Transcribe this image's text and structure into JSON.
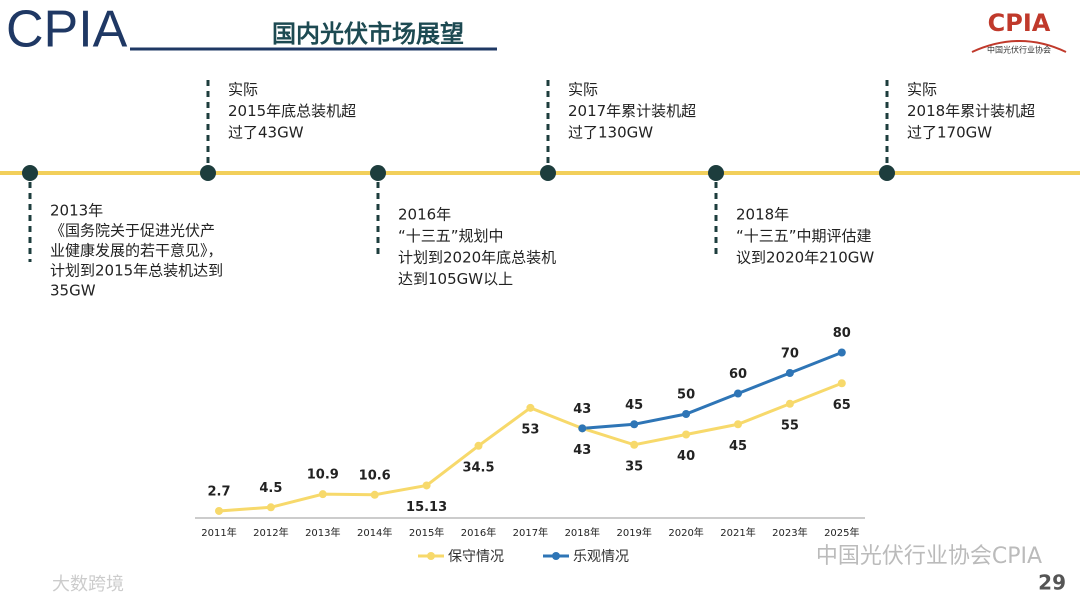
{
  "header": {
    "brand": "CPIA",
    "title": "国内光伏市场展望",
    "logo": "CPIA",
    "logo_sub": "中国光伏行业协会"
  },
  "timeline": [
    {
      "lines": [
        "2013年",
        "《国务院关于促进光伏产",
        "业健康发展的若干意见》，",
        "计划到2015年总装机达到",
        "35GW"
      ]
    },
    {
      "lines": [
        "实际",
        "2015年底总装机超",
        "过了43GW"
      ]
    },
    {
      "lines": [
        "2016年",
        "“十三五”规划中",
        "计划到2020年底总装机",
        "达到105GW以上"
      ]
    },
    {
      "lines": [
        "实际",
        "2017年累计装机超",
        "过了130GW"
      ]
    },
    {
      "lines": [
        "2018年",
        "“十三五”中期评估建",
        "议到2020年210GW"
      ]
    },
    {
      "lines": [
        "实际",
        "2018年累计装机超",
        "过了170GW"
      ]
    }
  ],
  "chart_data": {
    "type": "line",
    "categories": [
      "2011年",
      "2012年",
      "2013年",
      "2014年",
      "2015年",
      "2016年",
      "2017年",
      "2018年",
      "2019年",
      "2020年",
      "2021年",
      "2023年",
      "2025年"
    ],
    "series": [
      {
        "name": "保守情况",
        "color": "#f7d96b",
        "values": [
          2.7,
          4.5,
          10.9,
          10.6,
          15.13,
          34.5,
          53,
          43,
          35,
          40,
          45,
          55,
          65
        ]
      },
      {
        "name": "乐观情况",
        "color": "#2e75b6",
        "values": [
          null,
          null,
          null,
          null,
          null,
          null,
          null,
          43,
          45,
          50,
          60,
          70,
          80
        ]
      }
    ],
    "ylim": [
      0,
      90
    ],
    "grid": false,
    "legend": "bottom"
  },
  "footer": {
    "watermark": "中国光伏行业协会CPIA",
    "source": "大数跨境",
    "page": "29"
  }
}
